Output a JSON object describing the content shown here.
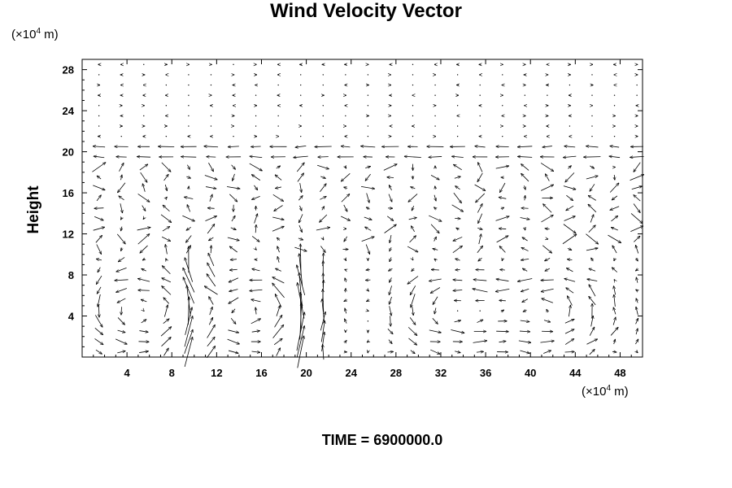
{
  "chart_data": {
    "type": "vector_field",
    "title": "Wind Velocity Vector",
    "xlabel": "",
    "ylabel": "Height",
    "x_unit_prefix": "(×10",
    "x_unit_exp": "4",
    "x_unit_suffix": " m)",
    "y_unit_prefix": "(×10",
    "y_unit_exp": "4",
    "y_unit_suffix": " m)",
    "xlim": [
      0,
      50
    ],
    "ylim": [
      0,
      29
    ],
    "x_ticks": [
      4,
      8,
      12,
      16,
      20,
      24,
      28,
      32,
      36,
      40,
      44,
      48
    ],
    "y_ticks": [
      4,
      8,
      12,
      16,
      20,
      24,
      28
    ],
    "grid": "off",
    "footer": "TIME = 6900000.0",
    "field_samples": [
      {
        "x": 2,
        "y": 26,
        "u": 0.05,
        "v": 0.0
      },
      {
        "x": 10,
        "y": 22,
        "u": -0.3,
        "v": 0.0
      },
      {
        "x": 20,
        "y": 20,
        "u": -0.6,
        "v": 0.0
      },
      {
        "x": 46,
        "y": 20,
        "u": -1.2,
        "v": 0.1
      },
      {
        "x": 14,
        "y": 6,
        "u": 1.2,
        "v": 0.9
      },
      {
        "x": 17,
        "y": 3,
        "u": -0.4,
        "v": -1.5
      },
      {
        "x": 30,
        "y": 16,
        "u": 0.6,
        "v": 1.8
      },
      {
        "x": 42,
        "y": 5,
        "u": 1.3,
        "v": 1.0
      }
    ]
  }
}
